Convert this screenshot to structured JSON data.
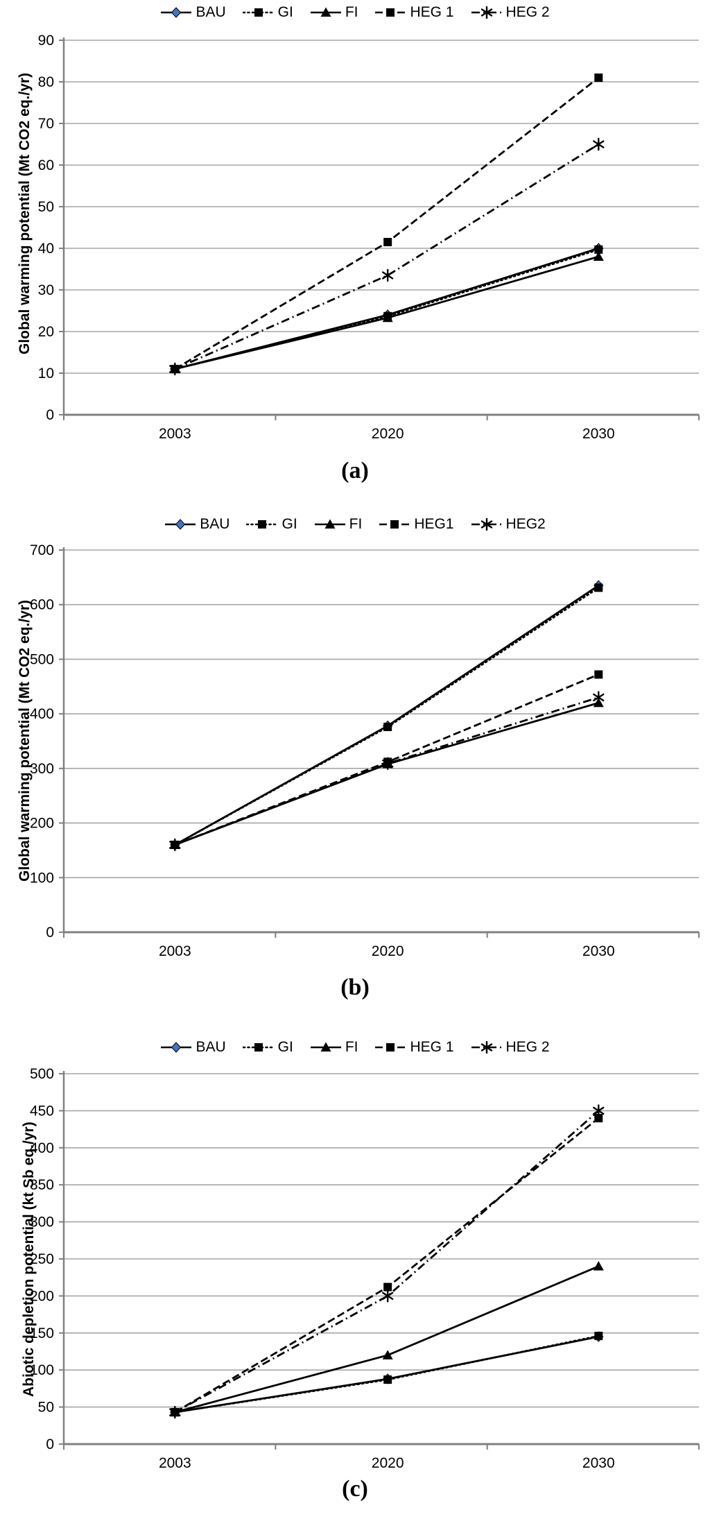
{
  "page": {
    "background": "#ffffff"
  },
  "colors": {
    "series_line": "#000000",
    "bau_marker_fill": "#4472c4",
    "gridline": "#a6a6a6",
    "axis_line": "#808080",
    "text": "#000000"
  },
  "chart_data": [
    {
      "id": "a",
      "type": "line",
      "caption": "(a)",
      "ylabel": "Global warming potential (Mt CO2 eq./yr)",
      "xlabel": "",
      "categories": [
        "2003",
        "2020",
        "2030"
      ],
      "ylim": [
        0,
        90
      ],
      "y_step": 10,
      "grid": "horizontal",
      "legend_position": "top",
      "legend_labels": [
        "BAU",
        "GI",
        "FI",
        "HEG 1",
        "HEG 2"
      ],
      "series": [
        {
          "name": "BAU",
          "line": "solid",
          "marker": "diamond",
          "values": [
            11,
            24,
            40
          ]
        },
        {
          "name": "GI",
          "line": "dotted",
          "marker": "square",
          "values": [
            11,
            23.7,
            39.7
          ]
        },
        {
          "name": "FI",
          "line": "solid",
          "marker": "triangle",
          "values": [
            11,
            23.3,
            38
          ]
        },
        {
          "name": "HEG 1",
          "line": "dashed",
          "marker": "square",
          "values": [
            11,
            41.5,
            81
          ]
        },
        {
          "name": "HEG 2",
          "line": "dashdot",
          "marker": "asterisk",
          "values": [
            11,
            33.5,
            65
          ]
        }
      ]
    },
    {
      "id": "b",
      "type": "line",
      "caption": "(b)",
      "ylabel": "Global warming potential (Mt CO2 eq./yr)",
      "xlabel": "",
      "categories": [
        "2003",
        "2020",
        "2030"
      ],
      "ylim": [
        0,
        700
      ],
      "y_step": 100,
      "grid": "horizontal",
      "legend_position": "top",
      "legend_labels": [
        "BAU",
        "GI",
        "FI",
        "HEG1",
        "HEG2"
      ],
      "series": [
        {
          "name": "BAU",
          "line": "solid",
          "marker": "diamond",
          "values": [
            160,
            378,
            635
          ]
        },
        {
          "name": "GI",
          "line": "dotted",
          "marker": "square",
          "values": [
            160,
            376,
            631
          ]
        },
        {
          "name": "FI",
          "line": "solid",
          "marker": "triangle",
          "values": [
            160,
            308,
            420
          ]
        },
        {
          "name": "HEG1",
          "line": "dashed",
          "marker": "square",
          "values": [
            160,
            312,
            472
          ]
        },
        {
          "name": "HEG2",
          "line": "dashdot",
          "marker": "asterisk",
          "values": [
            160,
            309,
            430
          ]
        }
      ]
    },
    {
      "id": "c",
      "type": "line",
      "caption": "(c)",
      "ylabel": "Abiotic depletion potential (kt Sb eq./yr)",
      "xlabel": "",
      "categories": [
        "2003",
        "2020",
        "2030"
      ],
      "ylim": [
        0,
        500
      ],
      "y_step": 50,
      "grid": "horizontal",
      "legend_position": "top",
      "legend_labels": [
        "BAU",
        "GI",
        "FI",
        "HEG 1",
        "HEG 2"
      ],
      "series": [
        {
          "name": "BAU",
          "line": "solid",
          "marker": "diamond",
          "values": [
            43,
            88,
            145
          ]
        },
        {
          "name": "GI",
          "line": "dotted",
          "marker": "square",
          "values": [
            43,
            87,
            146
          ]
        },
        {
          "name": "FI",
          "line": "solid",
          "marker": "triangle",
          "values": [
            43,
            120,
            240
          ]
        },
        {
          "name": "HEG 1",
          "line": "dashed",
          "marker": "square",
          "values": [
            43,
            212,
            440
          ]
        },
        {
          "name": "HEG 2",
          "line": "dashdot",
          "marker": "asterisk",
          "values": [
            43,
            200,
            450
          ]
        }
      ]
    }
  ]
}
